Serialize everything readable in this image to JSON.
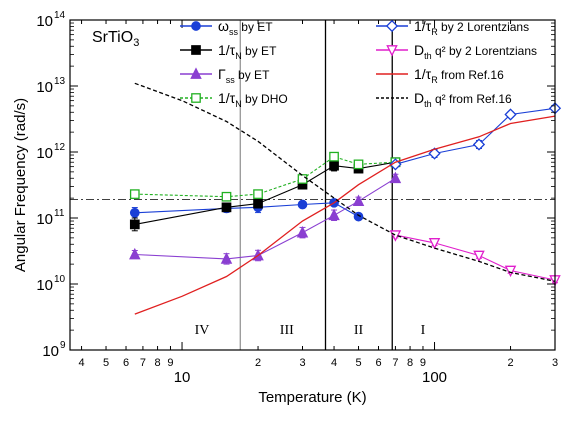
{
  "chart_data": {
    "type": "scatter",
    "title": "",
    "material_label": "SrTiO3",
    "material_label_parts": [
      "SrTiO",
      "3"
    ],
    "xlabel": "Temperature (K)",
    "ylabel": "Angular Frequency (rad/s)",
    "x_scale": "log",
    "y_scale": "log",
    "xlim": [
      3.6,
      300
    ],
    "ylim": [
      1000000000.0,
      100000000000000.0
    ],
    "x_major_ticks": [
      {
        "value": 10,
        "label": "10"
      },
      {
        "value": 100,
        "label": "100"
      }
    ],
    "x_minor_ticks": [
      {
        "value": 4,
        "label": "4"
      },
      {
        "value": 5,
        "label": "5"
      },
      {
        "value": 6,
        "label": "6"
      },
      {
        "value": 7,
        "label": "7"
      },
      {
        "value": 8,
        "label": "8"
      },
      {
        "value": 9,
        "label": "9"
      },
      {
        "value": 20,
        "label": "2"
      },
      {
        "value": 30,
        "label": "3"
      },
      {
        "value": 40,
        "label": "4"
      },
      {
        "value": 50,
        "label": "5"
      },
      {
        "value": 60,
        "label": "6"
      },
      {
        "value": 70,
        "label": "7"
      },
      {
        "value": 80,
        "label": "8"
      },
      {
        "value": 90,
        "label": "9"
      },
      {
        "value": 200,
        "label": "2"
      },
      {
        "value": 300,
        "label": "3"
      }
    ],
    "y_ticks": [
      {
        "value": 1000000000.0,
        "base": "10",
        "exp": "9"
      },
      {
        "value": 10000000000.0,
        "base": "10",
        "exp": "10"
      },
      {
        "value": 100000000000.0,
        "base": "10",
        "exp": "11"
      },
      {
        "value": 1000000000000.0,
        "base": "10",
        "exp": "12"
      },
      {
        "value": 10000000000000.0,
        "base": "10",
        "exp": "13"
      },
      {
        "value": 100000000000000.0,
        "base": "10",
        "exp": "14"
      }
    ],
    "legend_placement": "top",
    "region_lines_x": [
      17,
      37,
      68
    ],
    "reference_hline_y": 190000000000.0,
    "regions": [
      {
        "label": "IV",
        "x": 12
      },
      {
        "label": "III",
        "x": 26
      },
      {
        "label": "II",
        "x": 50
      },
      {
        "label": "I",
        "x": 90
      }
    ],
    "series": [
      {
        "name": "ω_ss by ET",
        "legend": {
          "sym": "ω",
          "sub": "ss",
          "rest": " by ET"
        },
        "color": "#1a3fd6",
        "marker": "circle",
        "filled": true,
        "line": "solid",
        "x": [
          6.5,
          15,
          20,
          30,
          40,
          50
        ],
        "y": [
          120000000000.0,
          140000000000.0,
          145000000000.0,
          160000000000.0,
          170000000000.0,
          105000000000.0
        ],
        "err": [
          0.2,
          0.15,
          0.2,
          0.1,
          0.1,
          0.1
        ]
      },
      {
        "name": "1/τ_N by ET",
        "legend": {
          "sym": "1/τ",
          "sub": "N",
          "rest": " by ET"
        },
        "color": "#000000",
        "marker": "square",
        "filled": true,
        "line": "solid",
        "x": [
          6.5,
          15,
          20,
          30,
          40,
          50,
          70
        ],
        "y": [
          80000000000.0,
          145000000000.0,
          165000000000.0,
          320000000000.0,
          620000000000.0,
          560000000000.0,
          700000000000.0
        ],
        "err": [
          0.25,
          0.15,
          0.15,
          0.15,
          0.2,
          0.15,
          0.15
        ]
      },
      {
        "name": "Γ_ss by ET",
        "legend": {
          "sym": "Γ",
          "sub": "ss",
          "rest": " by ET"
        },
        "color": "#8a3fd1",
        "marker": "triangle-up",
        "filled": true,
        "line": "solid",
        "x": [
          6.5,
          15,
          20,
          30,
          40,
          50,
          70
        ],
        "y": [
          28000000000.0,
          24000000000.0,
          27000000000.0,
          60000000000.0,
          110000000000.0,
          180000000000.0,
          400000000000.0
        ],
        "err": [
          0.15,
          0.2,
          0.2,
          0.2,
          0.2,
          0.15,
          0.15
        ]
      },
      {
        "name": "1/τ_N by DHO",
        "legend": {
          "sym": "1/τ",
          "sub": "N",
          "rest": " by DHO"
        },
        "color": "#22b022",
        "marker": "square",
        "filled": false,
        "line": "dashed",
        "x": [
          6.5,
          15,
          20,
          30,
          40,
          50,
          70
        ],
        "y": [
          230000000000.0,
          210000000000.0,
          230000000000.0,
          390000000000.0,
          850000000000.0,
          650000000000.0,
          700000000000.0
        ],
        "err": [
          0.1,
          0.1,
          0.1,
          0.1,
          0.15,
          0.1,
          0.1
        ]
      },
      {
        "name": "1/τ_R by 2 Lorentzians",
        "legend": {
          "sym": "1/τ",
          "sub": "R",
          "rest": " by 2 Lorentzians"
        },
        "color": "#1a3fd6",
        "marker": "diamond",
        "filled": false,
        "line": "solid",
        "x": [
          70,
          100,
          150,
          200,
          300
        ],
        "y": [
          650000000000.0,
          950000000000.0,
          1300000000000.0,
          3700000000000.0,
          4600000000000.0
        ],
        "err": [
          0.1,
          0.15,
          0.15,
          0.1,
          0.1
        ]
      },
      {
        "name": "D_th q^2 by 2 Lorentzians",
        "legend": {
          "sym": "D",
          "sub": "th",
          "rest": " q² by 2 Lorentzians"
        },
        "color": "#e01fcc",
        "marker": "triangle-down",
        "filled": false,
        "line": "solid",
        "x": [
          70,
          100,
          150,
          200,
          300
        ],
        "y": [
          55000000000.0,
          42000000000.0,
          27000000000.0,
          16000000000.0,
          11500000000.0
        ],
        "err": [
          0.1,
          0.1,
          0.1,
          0.1,
          0.1
        ]
      },
      {
        "name": "1/τ_R from Ref.16",
        "legend": {
          "sym": "1/τ",
          "sub": "R",
          "rest": " from Ref.16"
        },
        "color": "#e02020",
        "marker": "none",
        "line": "solid",
        "x": [
          6.5,
          10,
          15,
          20,
          30,
          40,
          50,
          70,
          100,
          150,
          200,
          300
        ],
        "y": [
          3500000000.0,
          6500000000.0,
          13000000000.0,
          27000000000.0,
          90000000000.0,
          170000000000.0,
          320000000000.0,
          700000000000.0,
          1100000000000.0,
          1700000000000.0,
          2700000000000.0,
          3500000000000.0
        ]
      },
      {
        "name": "D_th q^2 from Ref.16",
        "legend": {
          "sym": "D",
          "sub": "th",
          "rest": " q² from Ref.16"
        },
        "color": "#000000",
        "marker": "none",
        "line": "dashed",
        "x": [
          6.5,
          10,
          15,
          20,
          30,
          40,
          50,
          70,
          100,
          150,
          200,
          300
        ],
        "y": [
          11000000000000.0,
          6000000000000.0,
          2900000000000.0,
          1450000000000.0,
          440000000000.0,
          200000000000.0,
          110000000000.0,
          55000000000.0,
          35000000000.0,
          22000000000.0,
          15000000000.0,
          11000000000.0
        ]
      }
    ]
  }
}
